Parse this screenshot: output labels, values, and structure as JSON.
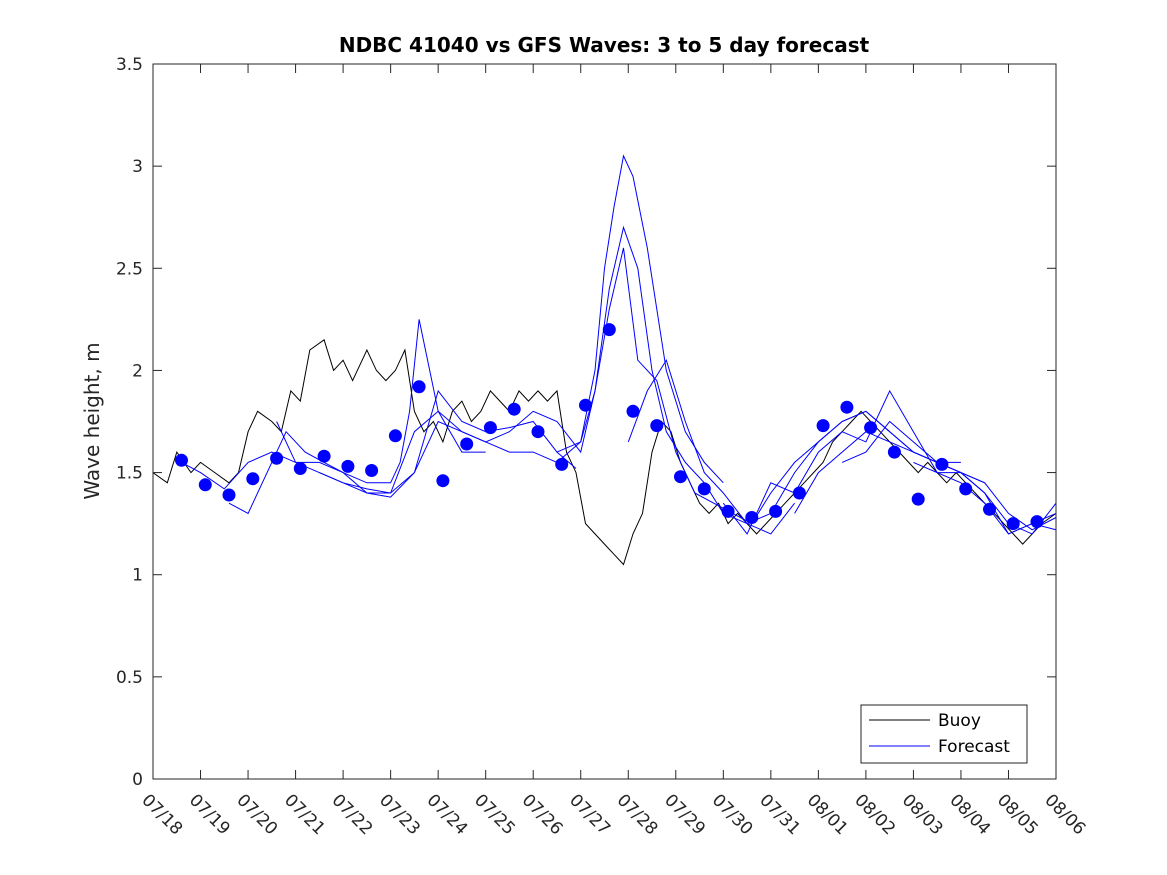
{
  "chart_data": {
    "type": "line",
    "title": "NDBC 41040 vs GFS Waves: 3 to 5 day forecast",
    "xlabel": "",
    "ylabel": "Wave height, m",
    "x_ticks": [
      "07/18",
      "07/19",
      "07/20",
      "07/21",
      "07/22",
      "07/23",
      "07/24",
      "07/25",
      "07/26",
      "07/27",
      "07/28",
      "07/29",
      "07/30",
      "07/31",
      "08/01",
      "08/02",
      "08/03",
      "08/04",
      "08/05",
      "08/06"
    ],
    "y_ticks": [
      "0",
      "0.5",
      "1",
      "1.5",
      "2",
      "2.5",
      "3",
      "3.5"
    ],
    "xlim": [
      0,
      19
    ],
    "ylim": [
      0,
      3.5
    ],
    "legend_position": "bottom-right",
    "colors": {
      "buoy": "#000000",
      "forecast": "#0000ff",
      "axis": "#262626"
    },
    "series": [
      {
        "name": "Buoy",
        "style": "line",
        "x": [
          0,
          0.3,
          0.5,
          0.8,
          1.0,
          1.3,
          1.6,
          1.8,
          2.0,
          2.2,
          2.5,
          2.7,
          2.9,
          3.1,
          3.3,
          3.6,
          3.8,
          4.0,
          4.2,
          4.5,
          4.7,
          4.9,
          5.1,
          5.3,
          5.5,
          5.7,
          5.9,
          6.1,
          6.3,
          6.5,
          6.7,
          6.9,
          7.1,
          7.3,
          7.5,
          7.7,
          7.9,
          8.1,
          8.3,
          8.5,
          8.7,
          8.9,
          9.1,
          9.3,
          9.5,
          9.7,
          9.9,
          10.1,
          10.3,
          10.5,
          10.7,
          10.9,
          11.1,
          11.3,
          11.5,
          11.7,
          11.9,
          12.1,
          12.3,
          12.5,
          12.7,
          12.9,
          13.1,
          13.3,
          13.5,
          13.7,
          13.9,
          14.1,
          14.3,
          14.5,
          14.7,
          14.9,
          15.1,
          15.3,
          15.5,
          15.7,
          15.9,
          16.1,
          16.3,
          16.5,
          16.7,
          16.9,
          17.1,
          17.3,
          17.5,
          17.7,
          17.9,
          18.1,
          18.3,
          18.5,
          18.7,
          19.0
        ],
        "values": [
          1.5,
          1.45,
          1.6,
          1.5,
          1.55,
          1.5,
          1.45,
          1.5,
          1.7,
          1.8,
          1.75,
          1.7,
          1.9,
          1.85,
          2.1,
          2.15,
          2.0,
          2.05,
          1.95,
          2.1,
          2.0,
          1.95,
          2.0,
          2.1,
          1.8,
          1.7,
          1.75,
          1.65,
          1.8,
          1.85,
          1.75,
          1.8,
          1.9,
          1.85,
          1.8,
          1.9,
          1.85,
          1.9,
          1.85,
          1.9,
          1.6,
          1.5,
          1.25,
          1.2,
          1.15,
          1.1,
          1.05,
          1.2,
          1.3,
          1.6,
          1.75,
          1.7,
          1.55,
          1.45,
          1.35,
          1.3,
          1.35,
          1.25,
          1.3,
          1.25,
          1.2,
          1.25,
          1.3,
          1.35,
          1.4,
          1.45,
          1.5,
          1.55,
          1.65,
          1.7,
          1.75,
          1.8,
          1.75,
          1.7,
          1.65,
          1.6,
          1.55,
          1.5,
          1.55,
          1.5,
          1.45,
          1.5,
          1.45,
          1.4,
          1.35,
          1.3,
          1.25,
          1.2,
          1.15,
          1.2,
          1.25,
          1.3
        ]
      },
      {
        "name": "Forecast",
        "style": "lines",
        "lines": [
          {
            "x": [
              0.6,
              1.0,
              1.5,
              2.0,
              2.5,
              3.0,
              3.5,
              4.0,
              4.5,
              5.0,
              5.2,
              5.4,
              5.6,
              6.0,
              6.5,
              7.0
            ],
            "values": [
              1.55,
              1.5,
              1.42,
              1.55,
              1.6,
              1.55,
              1.55,
              1.5,
              1.45,
              1.45,
              1.55,
              1.8,
              2.25,
              1.8,
              1.6,
              1.6
            ]
          },
          {
            "x": [
              1.6,
              2.0,
              2.4,
              2.8,
              3.2,
              3.6,
              4.0,
              4.5,
              5.0,
              5.5,
              6.0,
              6.5,
              7.0,
              7.5,
              8.0,
              8.5,
              8.9
            ],
            "values": [
              1.35,
              1.3,
              1.5,
              1.7,
              1.6,
              1.55,
              1.5,
              1.4,
              1.38,
              1.5,
              1.9,
              1.75,
              1.7,
              1.72,
              1.75,
              1.6,
              1.52
            ]
          },
          {
            "x": [
              2.6,
              3.0,
              3.5,
              4.0,
              4.5,
              5.0,
              5.5,
              6.0,
              6.5,
              7.0,
              7.5,
              8.0,
              8.5,
              9.0,
              9.3,
              9.5,
              9.7,
              9.9,
              10.1,
              10.4,
              10.8,
              11.2,
              11.6,
              12.0
            ],
            "values": [
              1.75,
              1.55,
              1.5,
              1.45,
              1.42,
              1.4,
              1.5,
              1.75,
              1.7,
              1.65,
              1.6,
              1.6,
              1.55,
              1.65,
              2.0,
              2.5,
              2.8,
              3.05,
              2.95,
              2.6,
              2.0,
              1.7,
              1.55,
              1.45
            ]
          },
          {
            "x": [
              3.5,
              4.0,
              4.5,
              5.0,
              5.5,
              6.0,
              6.5,
              7.0,
              7.5,
              8.0,
              8.5,
              9.0,
              9.3,
              9.6,
              9.9,
              10.2,
              10.5,
              10.8,
              11.2,
              11.6,
              12.0,
              12.5,
              13.0,
              13.5
            ],
            "values": [
              1.5,
              1.45,
              1.4,
              1.4,
              1.7,
              1.8,
              1.7,
              1.65,
              1.7,
              1.8,
              1.75,
              1.6,
              1.9,
              2.4,
              2.7,
              2.5,
              2.0,
              1.7,
              1.55,
              1.45,
              1.3,
              1.25,
              1.2,
              1.35
            ]
          },
          {
            "x": [
              8.5,
              9.0,
              9.3,
              9.6,
              9.9,
              10.2,
              10.6,
              11.0,
              11.4,
              11.8,
              12.2,
              12.6,
              13.0,
              13.5,
              14.0,
              14.5,
              15.0,
              15.5,
              16.0,
              16.5,
              17.0
            ],
            "values": [
              1.6,
              1.65,
              1.9,
              2.3,
              2.6,
              2.05,
              1.95,
              1.6,
              1.4,
              1.35,
              1.3,
              1.25,
              1.4,
              1.55,
              1.65,
              1.75,
              1.8,
              1.7,
              1.6,
              1.55,
              1.55
            ]
          },
          {
            "x": [
              10.0,
              10.4,
              10.8,
              11.2,
              11.6,
              12.0,
              12.5,
              13.0,
              13.5,
              14.0,
              14.5,
              15.0,
              15.5,
              16.0,
              16.5,
              17.0,
              17.5
            ],
            "values": [
              1.65,
              1.9,
              2.05,
              1.75,
              1.5,
              1.4,
              1.25,
              1.3,
              1.5,
              1.65,
              1.75,
              1.8,
              1.7,
              1.6,
              1.55,
              1.5,
              1.45
            ]
          },
          {
            "x": [
              12.0,
              12.5,
              13.0,
              13.5,
              14.0,
              14.5,
              15.0,
              15.5,
              16.0,
              16.5,
              17.0,
              17.5,
              18.0,
              18.5,
              19.0
            ],
            "values": [
              1.35,
              1.2,
              1.45,
              1.4,
              1.6,
              1.7,
              1.65,
              1.9,
              1.7,
              1.5,
              1.45,
              1.35,
              1.2,
              1.25,
              1.3
            ]
          },
          {
            "x": [
              13.5,
              14.0,
              14.5,
              15.0,
              15.5,
              16.0,
              16.5,
              17.0,
              17.5,
              18.0,
              18.5,
              19.0
            ],
            "values": [
              1.3,
              1.5,
              1.6,
              1.7,
              1.65,
              1.6,
              1.55,
              1.5,
              1.4,
              1.25,
              1.2,
              1.35
            ]
          },
          {
            "x": [
              14.5,
              15.0,
              15.5,
              16.0,
              16.5,
              17.0,
              17.5,
              18.0,
              18.5,
              19.0
            ],
            "values": [
              1.55,
              1.6,
              1.75,
              1.65,
              1.55,
              1.5,
              1.45,
              1.3,
              1.22,
              1.28
            ]
          },
          {
            "x": [
              16.0,
              16.5,
              17.0,
              17.5,
              18.0,
              18.5,
              19.0
            ],
            "values": [
              1.55,
              1.5,
              1.5,
              1.4,
              1.2,
              1.25,
              1.22
            ]
          }
        ]
      },
      {
        "name": "",
        "style": "markers",
        "x": [
          0.6,
          1.1,
          1.6,
          2.1,
          2.6,
          3.1,
          3.6,
          4.1,
          4.6,
          5.1,
          5.6,
          6.1,
          6.6,
          7.1,
          7.6,
          8.1,
          8.6,
          9.1,
          9.6,
          10.1,
          10.6,
          11.1,
          11.6,
          12.1,
          12.6,
          13.1,
          13.6,
          14.1,
          14.6,
          15.1,
          15.6,
          16.1,
          16.6,
          17.1,
          17.6,
          18.1,
          18.6
        ],
        "values": [
          1.56,
          1.44,
          1.39,
          1.47,
          1.57,
          1.52,
          1.58,
          1.53,
          1.51,
          1.68,
          1.92,
          1.46,
          1.64,
          1.72,
          1.81,
          1.7,
          1.54,
          1.83,
          2.2,
          1.8,
          1.73,
          1.48,
          1.42,
          1.31,
          1.28,
          1.31,
          1.4,
          1.73,
          1.82,
          1.72,
          1.6,
          1.37,
          1.54,
          1.42,
          1.32,
          1.25,
          1.26
        ]
      }
    ]
  }
}
